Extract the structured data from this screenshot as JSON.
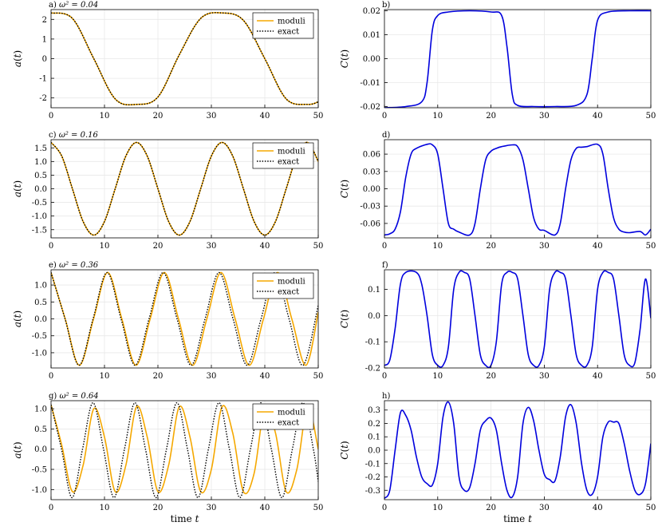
{
  "figure": {
    "xlabel": "time t",
    "colors": {
      "moduli": "#f5a800",
      "exact": "#000000",
      "C": "#0000dd",
      "grid": "#e8e8e8"
    }
  },
  "chart_data": [
    {
      "panel": "a)",
      "type": "line",
      "omega2": "0.04",
      "title": "a)  ω² = 0.04",
      "ylabel": "a(t)",
      "xlabel": "",
      "xlim": [
        0,
        50
      ],
      "ylim": [
        -2.5,
        2.5
      ],
      "xticks": [
        0,
        10,
        20,
        30,
        40,
        50
      ],
      "yticks": [
        -2,
        -1,
        0,
        1,
        2
      ],
      "grid": true,
      "legend": "top-right",
      "series": [
        {
          "name": "moduli",
          "style": "solid",
          "x": [
            0,
            4,
            8,
            12,
            16,
            20,
            24,
            28,
            32,
            36,
            40,
            44,
            48,
            50
          ],
          "y": [
            2.33,
            2.05,
            0.0,
            -2.05,
            -2.33,
            -1.95,
            0.2,
            2.05,
            2.33,
            1.95,
            0.0,
            -2.05,
            -2.33,
            -2.2
          ]
        },
        {
          "name": "exact",
          "style": "dotted",
          "x": [
            0,
            4,
            8,
            12,
            16,
            20,
            24,
            28,
            32,
            36,
            40,
            44,
            48,
            50
          ],
          "y": [
            2.33,
            2.05,
            0.0,
            -2.05,
            -2.33,
            -1.95,
            0.2,
            2.05,
            2.33,
            1.95,
            0.0,
            -2.05,
            -2.33,
            -2.2
          ]
        }
      ]
    },
    {
      "panel": "b)",
      "type": "line",
      "title": "b)",
      "ylabel": "C(t)",
      "xlabel": "",
      "xlim": [
        0,
        50
      ],
      "ylim": [
        -0.0205,
        0.0205
      ],
      "xticks": [
        0,
        10,
        20,
        30,
        40,
        50
      ],
      "yticks": [
        -0.02,
        -0.01,
        0.0,
        0.01,
        0.02
      ],
      "ytick_labels": [
        "-0.02",
        "-0.01",
        "0.00",
        "0.01",
        "0.02"
      ],
      "grid": true,
      "series": [
        {
          "name": "",
          "style": "solid",
          "x": [
            0,
            4,
            7,
            8,
            9,
            10,
            12,
            16,
            20,
            22,
            23,
            24,
            25,
            28,
            32,
            36,
            38,
            39,
            40,
            42,
            46,
            50
          ],
          "y": [
            -0.0205,
            -0.02,
            -0.018,
            -0.01,
            0.012,
            0.018,
            0.0195,
            0.02,
            0.0195,
            0.018,
            0.005,
            -0.015,
            -0.0195,
            -0.02,
            -0.02,
            -0.0195,
            -0.015,
            0.0,
            0.016,
            0.0195,
            0.02,
            0.02
          ]
        }
      ]
    },
    {
      "panel": "c)",
      "type": "line",
      "omega2": "0.16",
      "title": "c)  ω² = 0.16",
      "ylabel": "a(t)",
      "xlabel": "",
      "xlim": [
        0,
        50
      ],
      "ylim": [
        -1.8,
        1.8
      ],
      "xticks": [
        0,
        10,
        20,
        30,
        40,
        50
      ],
      "yticks": [
        -1.5,
        -1.0,
        -0.5,
        0.0,
        0.5,
        1.0,
        1.5
      ],
      "ytick_labels": [
        "-1.5",
        "-1.0",
        "-0.5",
        "0.0",
        "0.5",
        "1.0",
        "1.5"
      ],
      "grid": true,
      "legend": "top-right",
      "series": [
        {
          "name": "moduli",
          "style": "solid",
          "x": [
            0,
            2,
            4,
            6,
            8,
            10,
            12,
            14,
            16,
            18,
            20,
            22,
            24,
            26,
            28,
            30,
            32,
            34,
            36,
            38,
            40,
            42,
            44,
            46,
            48,
            50
          ],
          "y": [
            1.7,
            1.2,
            0.0,
            -1.2,
            -1.7,
            -1.2,
            0.0,
            1.2,
            1.7,
            1.2,
            0.0,
            -1.2,
            -1.7,
            -1.2,
            0.0,
            1.2,
            1.7,
            1.2,
            0.0,
            -1.2,
            -1.7,
            -1.2,
            0.0,
            1.2,
            1.7,
            1.0
          ]
        },
        {
          "name": "exact",
          "style": "dotted",
          "x": [
            0,
            2,
            4,
            6,
            8,
            10,
            12,
            14,
            16,
            18,
            20,
            22,
            24,
            26,
            28,
            30,
            32,
            34,
            36,
            38,
            40,
            42,
            44,
            46,
            48,
            50
          ],
          "y": [
            1.7,
            1.2,
            0.0,
            -1.2,
            -1.7,
            -1.2,
            0.0,
            1.2,
            1.7,
            1.2,
            0.0,
            -1.2,
            -1.7,
            -1.2,
            0.0,
            1.2,
            1.7,
            1.2,
            0.0,
            -1.2,
            -1.7,
            -1.2,
            0.0,
            1.2,
            1.7,
            1.0
          ]
        }
      ]
    },
    {
      "panel": "d)",
      "type": "line",
      "title": "d)",
      "ylabel": "C(t)",
      "xlabel": "",
      "xlim": [
        0,
        50
      ],
      "ylim": [
        -0.085,
        0.085
      ],
      "xticks": [
        0,
        10,
        20,
        30,
        40,
        50
      ],
      "yticks": [
        -0.06,
        -0.03,
        0.0,
        0.03,
        0.06
      ],
      "ytick_labels": [
        "-0.06",
        "-0.03",
        "0.00",
        "0.03",
        "0.06"
      ],
      "grid": true,
      "series": [
        {
          "name": "",
          "style": "solid",
          "x": [
            0,
            1,
            2,
            3,
            4,
            5,
            6,
            8,
            9,
            10,
            11,
            12,
            13,
            14,
            16,
            17,
            18,
            19,
            20,
            21,
            22,
            24,
            25,
            26,
            27,
            28,
            29,
            30,
            32,
            33,
            34,
            35,
            36,
            37,
            38,
            40,
            41,
            42,
            43,
            44,
            45,
            46,
            48,
            49,
            50
          ],
          "y": [
            -0.08,
            -0.078,
            -0.07,
            -0.04,
            0.02,
            0.06,
            0.07,
            0.077,
            0.076,
            0.06,
            0.0,
            -0.06,
            -0.07,
            -0.075,
            -0.08,
            -0.06,
            0.0,
            0.05,
            0.065,
            0.07,
            0.073,
            0.076,
            0.073,
            0.05,
            0.0,
            -0.05,
            -0.07,
            -0.072,
            -0.08,
            -0.06,
            0.0,
            0.05,
            0.07,
            0.072,
            0.073,
            0.077,
            0.06,
            0.0,
            -0.05,
            -0.07,
            -0.075,
            -0.076,
            -0.074,
            -0.08,
            -0.07
          ]
        }
      ]
    },
    {
      "panel": "e)",
      "type": "line",
      "omega2": "0.36",
      "title": "e)  ω² = 0.36",
      "ylabel": "a(t)",
      "xlabel": "",
      "xlim": [
        0,
        50
      ],
      "ylim": [
        -1.45,
        1.45
      ],
      "xticks": [
        0,
        10,
        20,
        30,
        40,
        50
      ],
      "yticks": [
        -1.0,
        -0.5,
        0.0,
        0.5,
        1.0
      ],
      "ytick_labels": [
        "-1.0",
        "-0.5",
        "0.0",
        "0.5",
        "1.0"
      ],
      "grid": true,
      "legend": "top-right",
      "series": [
        {
          "name": "moduli",
          "style": "solid",
          "x": [
            0,
            2.65,
            5.3,
            7.95,
            10.6,
            13.25,
            15.9,
            18.55,
            21.2,
            23.85,
            26.5,
            29.15,
            31.8,
            34.45,
            37.1,
            39.75,
            42.4,
            45.05,
            47.7,
            50
          ],
          "y": [
            1.37,
            0.0,
            -1.37,
            0.0,
            1.37,
            0.0,
            -1.37,
            0.0,
            1.37,
            0.0,
            -1.37,
            0.0,
            1.37,
            0.0,
            -1.37,
            0.0,
            1.37,
            0.0,
            -1.37,
            0.2
          ]
        },
        {
          "name": "exact",
          "style": "dotted",
          "x": [
            0,
            2.62,
            5.24,
            7.86,
            10.48,
            13.1,
            15.72,
            18.34,
            20.96,
            23.58,
            26.2,
            28.82,
            31.44,
            34.06,
            36.68,
            39.3,
            41.92,
            44.54,
            47.16,
            50
          ],
          "y": [
            1.37,
            0.0,
            -1.37,
            0.0,
            1.37,
            0.0,
            -1.37,
            0.0,
            1.37,
            0.0,
            -1.37,
            0.0,
            1.37,
            0.0,
            -1.37,
            0.0,
            1.37,
            0.0,
            -1.37,
            0.4
          ]
        }
      ]
    },
    {
      "panel": "f)",
      "type": "line",
      "title": "f)",
      "ylabel": "C(t)",
      "xlabel": "",
      "xlim": [
        0,
        50
      ],
      "ylim": [
        -0.2,
        0.175
      ],
      "xticks": [
        0,
        10,
        20,
        30,
        40,
        50
      ],
      "yticks": [
        -0.2,
        -0.1,
        0.0,
        0.1
      ],
      "ytick_labels": [
        "-0.2",
        "-0.1",
        "0.0",
        "0.1"
      ],
      "grid": true,
      "series": [
        {
          "name": "",
          "style": "solid",
          "x": [
            0,
            1,
            2,
            3,
            4,
            6,
            7,
            8,
            9,
            10,
            11,
            12,
            13,
            14,
            15,
            16,
            17,
            18,
            19,
            20,
            21,
            22,
            23,
            24,
            25,
            26,
            27,
            28,
            29,
            30,
            31,
            32,
            33,
            34,
            35,
            36,
            37,
            38,
            39,
            40,
            41,
            42,
            43,
            44,
            45,
            46,
            47,
            48,
            49,
            50
          ],
          "y": [
            -0.19,
            -0.17,
            -0.05,
            0.12,
            0.165,
            0.165,
            0.12,
            0.0,
            -0.15,
            -0.19,
            -0.19,
            -0.12,
            0.1,
            0.165,
            0.165,
            0.14,
            0.0,
            -0.15,
            -0.19,
            -0.19,
            -0.1,
            0.12,
            0.165,
            0.165,
            0.14,
            0.0,
            -0.15,
            -0.19,
            -0.19,
            -0.12,
            0.1,
            0.165,
            0.165,
            0.14,
            0.0,
            -0.15,
            -0.19,
            -0.19,
            -0.12,
            0.1,
            0.165,
            0.165,
            0.14,
            0.0,
            -0.15,
            -0.19,
            -0.18,
            -0.05,
            0.14,
            -0.01
          ]
        }
      ]
    },
    {
      "panel": "g)",
      "type": "line",
      "omega2": "0.64",
      "title": "g)  ω² = 0.64",
      "ylabel": "a(t)",
      "xlabel": "time t",
      "xlim": [
        0,
        50
      ],
      "ylim": [
        -1.25,
        1.2
      ],
      "xticks": [
        0,
        10,
        20,
        30,
        40,
        50
      ],
      "yticks": [
        -1.0,
        -0.5,
        0.0,
        0.5,
        1.0
      ],
      "ytick_labels": [
        "-1.0",
        "-0.5",
        "0.0",
        "0.5",
        "1.0"
      ],
      "grid": true,
      "legend": "top-right",
      "series": [
        {
          "name": "moduli",
          "style": "solid",
          "x": [
            0,
            2,
            4,
            6,
            8,
            10,
            12,
            14,
            16,
            18,
            20,
            22,
            24,
            26,
            28,
            30,
            32,
            34,
            36,
            38,
            40,
            42,
            44,
            46,
            48,
            50
          ],
          "y": [
            1.1,
            0.1,
            -1.05,
            -0.4,
            1.0,
            0.3,
            -1.05,
            -0.4,
            1.05,
            0.3,
            -1.05,
            -0.4,
            1.05,
            0.3,
            -1.05,
            -0.5,
            1.05,
            0.4,
            -1.05,
            -0.6,
            1.05,
            0.4,
            -1.05,
            -0.5,
            1.05,
            0.0
          ]
        },
        {
          "name": "exact",
          "style": "dotted",
          "x": [
            0,
            1.96,
            3.93,
            5.89,
            7.85,
            9.82,
            11.78,
            13.74,
            15.71,
            17.67,
            19.63,
            21.6,
            23.56,
            25.53,
            27.49,
            29.45,
            31.42,
            33.38,
            35.34,
            37.31,
            39.27,
            41.23,
            43.2,
            45.16,
            47.12,
            49.09,
            50
          ],
          "y": [
            1.1,
            0.0,
            -1.2,
            0.0,
            1.15,
            0.0,
            -1.2,
            0.0,
            1.15,
            0.0,
            -1.2,
            0.0,
            1.15,
            0.0,
            -1.2,
            0.0,
            1.15,
            0.0,
            -1.2,
            0.0,
            1.15,
            0.0,
            -1.2,
            0.0,
            1.15,
            0.0,
            -0.8
          ]
        }
      ]
    },
    {
      "panel": "h)",
      "type": "line",
      "title": "h)",
      "ylabel": "C(t)",
      "xlabel": "time t",
      "xlim": [
        0,
        50
      ],
      "ylim": [
        -0.37,
        0.37
      ],
      "xticks": [
        0,
        10,
        20,
        30,
        40,
        50
      ],
      "yticks": [
        -0.3,
        -0.2,
        -0.1,
        0.0,
        0.1,
        0.2,
        0.3
      ],
      "ytick_labels": [
        "-0.3",
        "-0.2",
        "-0.1",
        "0.0",
        "0.1",
        "0.2",
        "0.3"
      ],
      "grid": true,
      "series": [
        {
          "name": "",
          "style": "solid",
          "x": [
            0,
            1,
            2,
            3,
            4,
            5,
            6,
            7,
            8,
            9,
            10,
            11,
            12,
            13,
            14,
            15,
            16,
            17,
            18,
            19,
            20,
            21,
            22,
            23,
            24,
            25,
            26,
            27,
            28,
            29,
            30,
            31,
            32,
            33,
            34,
            35,
            36,
            37,
            38,
            39,
            40,
            41,
            42,
            43,
            44,
            45,
            46,
            47,
            48,
            49,
            50
          ],
          "y": [
            -0.36,
            -0.3,
            0.0,
            0.28,
            0.26,
            0.15,
            -0.05,
            -0.2,
            -0.25,
            -0.26,
            -0.1,
            0.25,
            0.36,
            0.2,
            -0.2,
            -0.3,
            -0.28,
            -0.1,
            0.15,
            0.22,
            0.24,
            0.15,
            -0.1,
            -0.3,
            -0.35,
            -0.2,
            0.2,
            0.32,
            0.22,
            0.0,
            -0.18,
            -0.22,
            -0.23,
            -0.05,
            0.25,
            0.34,
            0.2,
            -0.1,
            -0.3,
            -0.33,
            -0.2,
            0.1,
            0.21,
            0.21,
            0.2,
            0.05,
            -0.15,
            -0.3,
            -0.33,
            -0.25,
            0.05
          ]
        }
      ]
    }
  ]
}
